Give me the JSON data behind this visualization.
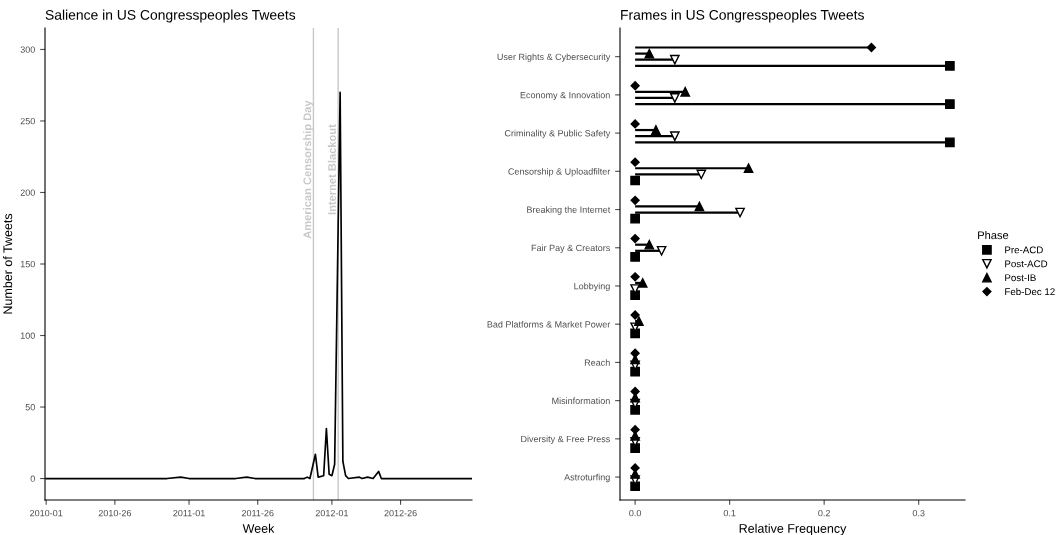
{
  "chart_data": [
    {
      "type": "line",
      "title": "Salience in US Congresspeoples Tweets",
      "xlabel": "Week",
      "ylabel": "Number of Tweets",
      "x": [
        "2010-01-04",
        "2010-11-08",
        "2010-12-13",
        "2011-01-03",
        "2011-05-02",
        "2011-05-30",
        "2011-06-20",
        "2011-10-24",
        "2011-10-31",
        "2011-11-07",
        "2011-11-21",
        "2011-11-28",
        "2011-12-12",
        "2011-12-19",
        "2011-12-26",
        "2012-01-02",
        "2012-01-09",
        "2012-01-23",
        "2012-01-30",
        "2012-02-06",
        "2012-02-13",
        "2012-03-12",
        "2012-03-19",
        "2012-04-02",
        "2012-04-16",
        "2012-04-30",
        "2012-05-07",
        "2012-12-24"
      ],
      "series": [
        {
          "color": "#000000",
          "values": [
            0,
            0,
            1,
            0,
            0,
            1,
            0,
            0,
            1,
            0,
            17,
            1,
            2,
            35,
            3,
            2,
            10,
            270,
            12,
            2,
            0,
            1,
            0,
            1,
            0,
            5,
            0,
            0
          ]
        }
      ],
      "xlim": [
        "2010-01-01",
        "2012-12-24"
      ],
      "xticks": [
        {
          "value": "2010-01-04",
          "label": "2010-01"
        },
        {
          "value": "2010-06-28",
          "label": "2010-26"
        },
        {
          "value": "2011-01-03",
          "label": "2011-01"
        },
        {
          "value": "2011-06-27",
          "label": "2011-26"
        },
        {
          "value": "2012-01-02",
          "label": "2012-01"
        },
        {
          "value": "2012-06-25",
          "label": "2012-26"
        }
      ],
      "ylim": [
        -15,
        315
      ],
      "yticks": [
        0,
        50,
        100,
        150,
        200,
        250,
        300
      ],
      "ref_lines": [
        {
          "axis": "x",
          "value": "2011-11-16",
          "label": "American Censorship Day",
          "color": "#c8c8c8"
        },
        {
          "axis": "x",
          "value": "2012-01-18",
          "label": "Internet Blackout",
          "color": "#c8c8c8"
        }
      ],
      "grid": false
    },
    {
      "type": "lollipop",
      "orientation": "horizontal",
      "title": "Frames in US Congresspeoples Tweets",
      "xlabel": "Relative Frequency",
      "legend_title": "Phase",
      "legend": "right",
      "grid": false,
      "categories": [
        "User Rights & Cybersecurity",
        "Economy & Innovation",
        "Criminality & Public Safety",
        "Censorship & Uploadfilter",
        "Breaking the Internet",
        "Fair Pay & Creators",
        "Lobbying",
        "Bad Platforms & Market Power",
        "Reach",
        "Misinformation",
        "Diversity & Free Press",
        "Astroturfing"
      ],
      "series": [
        {
          "name": "Pre-ACD",
          "color": "#000000",
          "marker": "square",
          "values": [
            0.333,
            0.333,
            0.333,
            0,
            0,
            0,
            0,
            0,
            0,
            0,
            0,
            0
          ]
        },
        {
          "name": "Post-ACD",
          "color": "#000000",
          "marker": "triangle_down_open",
          "values": [
            0.042,
            0.042,
            0.042,
            0.07,
            0.111,
            0.028,
            0,
            0,
            0,
            0,
            0,
            0
          ]
        },
        {
          "name": "Post-IB",
          "color": "#000000",
          "marker": "triangle",
          "values": [
            0.015,
            0.053,
            0.022,
            0.12,
            0.068,
            0.015,
            0.008,
            0.004,
            0,
            0,
            0,
            0
          ]
        },
        {
          "name": "Feb-Dec 12",
          "color": "#000000",
          "marker": "diamond",
          "values": [
            0.25,
            0,
            0,
            0,
            0,
            0,
            0,
            0,
            0,
            0,
            0,
            0
          ]
        }
      ],
      "xlim": [
        -0.016,
        0.349
      ],
      "xticks": [
        {
          "value": 0,
          "label": "0.0"
        },
        0.1,
        0.2,
        0.3
      ]
    }
  ]
}
